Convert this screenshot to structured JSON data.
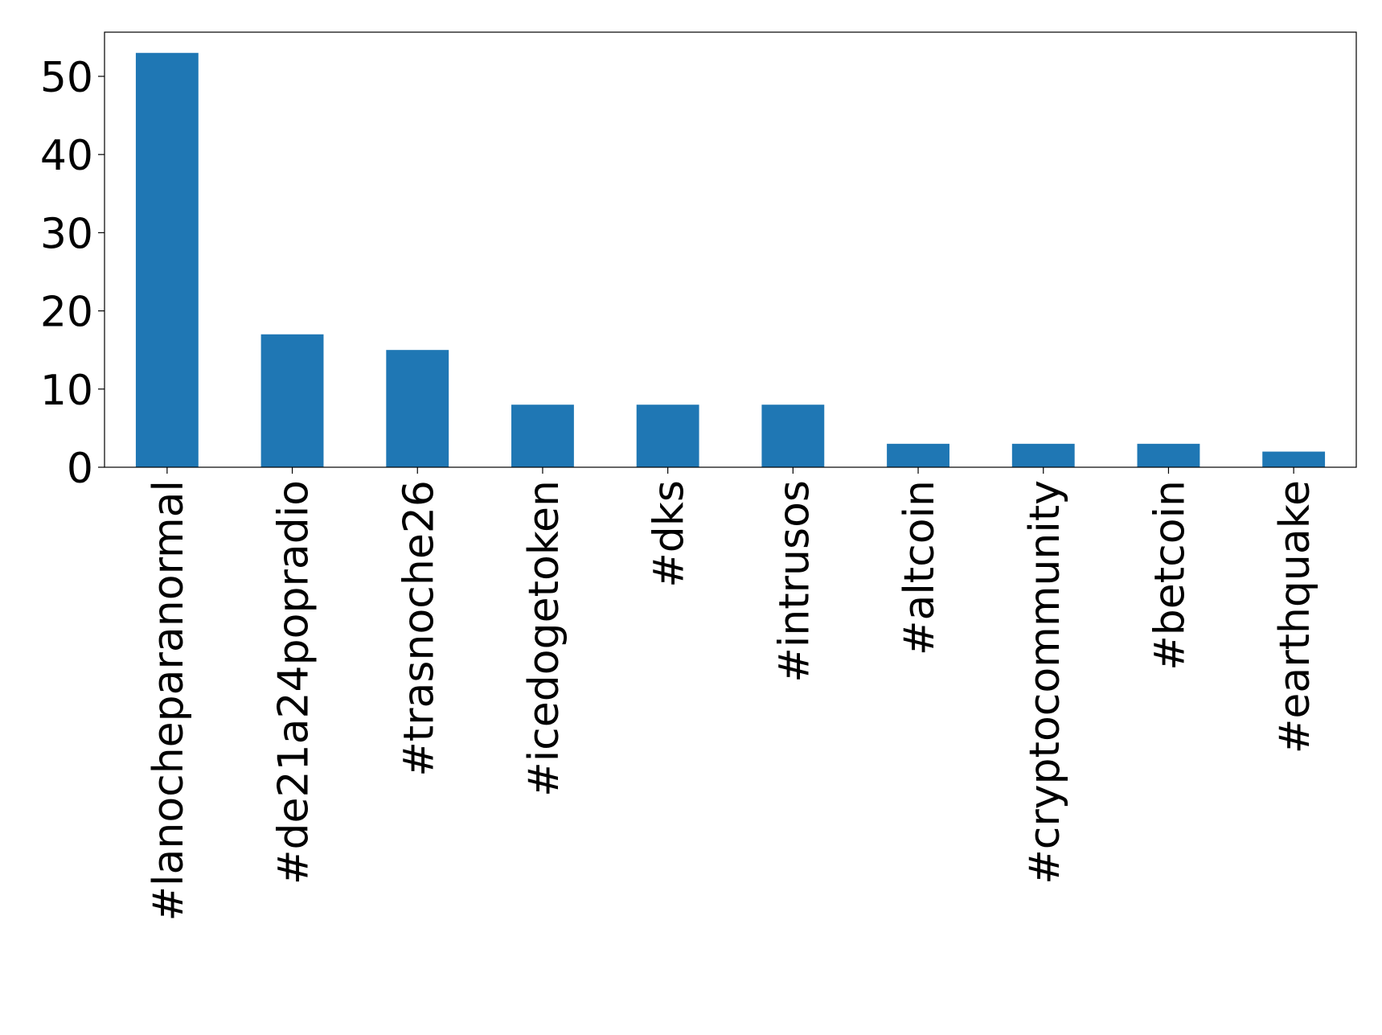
{
  "chart_data": {
    "type": "bar",
    "categories": [
      "#lanocheparanormal",
      "#de21a24popradio",
      "#trasnoche26",
      "#icedogetoken",
      "#dks",
      "#intrusos",
      "#altcoin",
      "#cryptocommunity",
      "#betcoin",
      "#earthquake"
    ],
    "values": [
      53,
      17,
      15,
      8,
      8,
      8,
      3,
      3,
      3,
      2
    ],
    "color": "#1f77b4",
    "ylim": [
      0,
      55.65
    ],
    "yticks": [
      0,
      10,
      20,
      30,
      40,
      50
    ],
    "grid": false
  }
}
